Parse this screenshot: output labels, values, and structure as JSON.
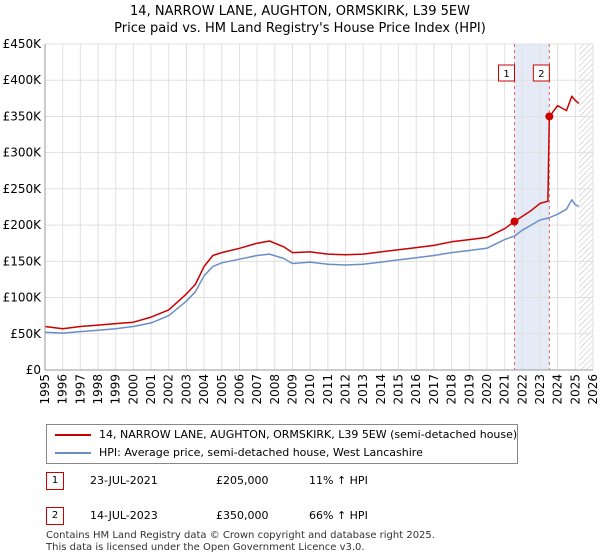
{
  "chart_data": {
    "type": "line",
    "title": "14, NARROW LANE, AUGHTON, ORMSKIRK, L39 5EW",
    "subtitle": "Price paid vs. HM Land Registry's House Price Index (HPI)",
    "ylim": [
      0,
      450000
    ],
    "xlim": [
      1995,
      2026
    ],
    "yticks": [
      0,
      50000,
      100000,
      150000,
      200000,
      250000,
      300000,
      350000,
      400000,
      450000
    ],
    "ytick_labels": [
      "£0",
      "£50K",
      "£100K",
      "£150K",
      "£200K",
      "£250K",
      "£300K",
      "£350K",
      "£400K",
      "£450K"
    ],
    "xticks": [
      "1995",
      "1996",
      "1997",
      "1998",
      "1999",
      "2000",
      "2001",
      "2002",
      "2003",
      "2004",
      "2005",
      "2006",
      "2007",
      "2008",
      "2009",
      "2010",
      "2011",
      "2012",
      "2013",
      "2014",
      "2015",
      "2016",
      "2017",
      "2018",
      "2019",
      "2020",
      "2021",
      "2022",
      "2023",
      "2024",
      "2025",
      "2026"
    ],
    "grid": true,
    "series": [
      {
        "name": "14, NARROW LANE, AUGHTON, ORMSKIRK, L39 5EW (semi-detached house)",
        "color": "#cc0000",
        "x": [
          1995,
          1996,
          1997,
          1998,
          1999,
          2000,
          2001,
          2002,
          2003,
          2003.5,
          2004,
          2004.5,
          2005,
          2006,
          2007,
          2007.7,
          2008.5,
          2009,
          2010,
          2011,
          2012,
          2013,
          2014,
          2015,
          2016,
          2017,
          2018,
          2019,
          2020,
          2021,
          2021.56,
          2022,
          2022.5,
          2023,
          2023.45,
          2023.53,
          2023.7,
          2024,
          2024.5,
          2024.8,
          2025,
          2025.2
        ],
        "values": [
          60000,
          57000,
          60000,
          62000,
          64000,
          66000,
          73000,
          83000,
          105000,
          118000,
          143000,
          158000,
          162000,
          168000,
          175000,
          178000,
          170000,
          162000,
          163000,
          160000,
          159000,
          160000,
          163000,
          166000,
          169000,
          172000,
          177000,
          180000,
          183000,
          195000,
          205000,
          212000,
          220000,
          230000,
          233000,
          350000,
          355000,
          365000,
          358000,
          378000,
          372000,
          368000
        ]
      },
      {
        "name": "HPI: Average price, semi-detached house, West Lancashire",
        "color": "#6a8fc7",
        "x": [
          1995,
          1996,
          1997,
          1998,
          1999,
          2000,
          2001,
          2002,
          2003,
          2003.5,
          2004,
          2004.5,
          2005,
          2006,
          2007,
          2007.7,
          2008.5,
          2009,
          2010,
          2011,
          2012,
          2013,
          2014,
          2015,
          2016,
          2017,
          2018,
          2019,
          2020,
          2021,
          2021.56,
          2022,
          2022.5,
          2023,
          2023.5,
          2024,
          2024.5,
          2024.8,
          2025,
          2025.2
        ],
        "values": [
          52000,
          51000,
          53000,
          55000,
          57000,
          60000,
          65000,
          75000,
          95000,
          108000,
          130000,
          143000,
          148000,
          153000,
          158000,
          160000,
          154000,
          147000,
          149000,
          146000,
          145000,
          146000,
          149000,
          152000,
          155000,
          158000,
          162000,
          165000,
          168000,
          180000,
          185000,
          193000,
          200000,
          207000,
          210000,
          215000,
          222000,
          235000,
          228000,
          226000
        ]
      }
    ],
    "sales": [
      {
        "label": "1",
        "x": 2021.56,
        "value": 205000,
        "date": "23-JUL-2021",
        "price": "£205,000",
        "hpi": "11% ↑ HPI"
      },
      {
        "label": "2",
        "x": 2023.53,
        "value": 350000,
        "date": "14-JUL-2023",
        "price": "£350,000",
        "hpi": "66% ↑ HPI"
      }
    ],
    "hatch_from": 2025.2
  },
  "legend": {
    "red_label": "14, NARROW LANE, AUGHTON, ORMSKIRK, L39 5EW (semi-detached house)",
    "blue_label": "HPI: Average price, semi-detached house, West Lancashire",
    "red_color": "#cc0000",
    "blue_color": "#6a8fc7"
  },
  "footer": {
    "line1": "Contains HM Land Registry data © Crown copyright and database right 2025.",
    "line2": "This data is licensed under the Open Government Licence v3.0."
  }
}
